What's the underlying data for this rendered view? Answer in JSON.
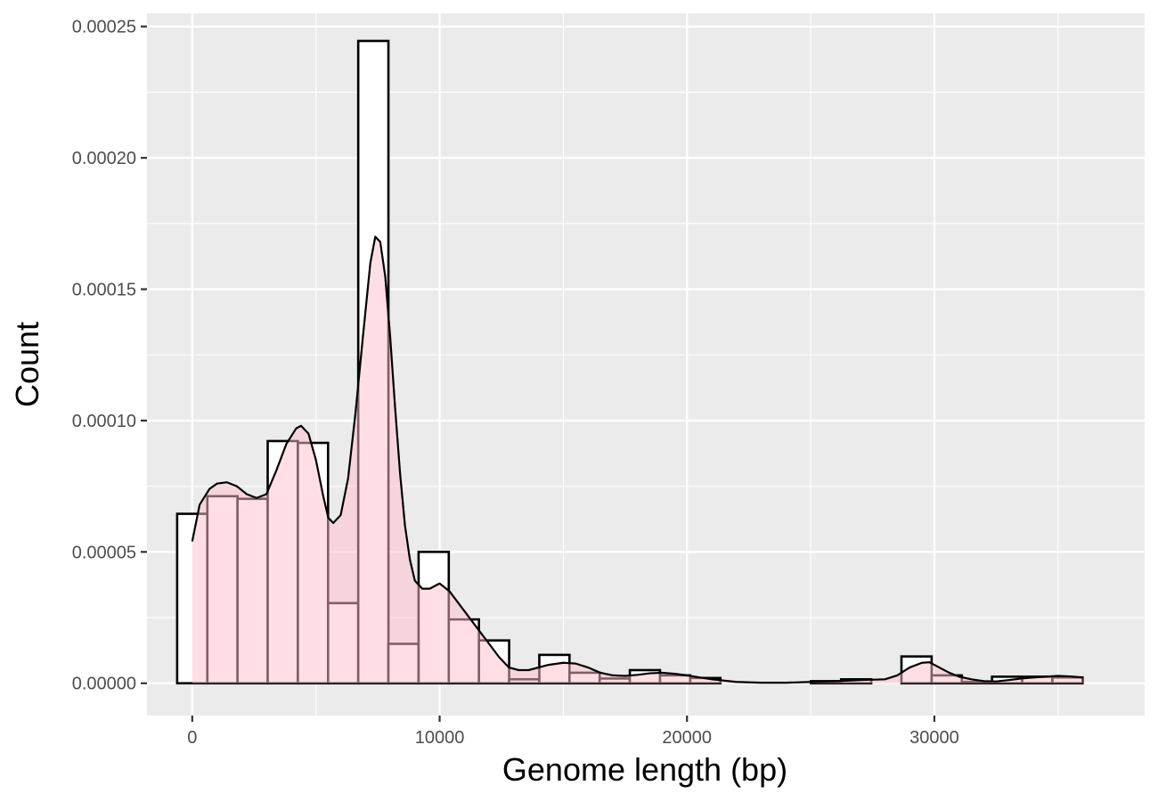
{
  "chart_data": {
    "type": "bar",
    "title": "",
    "xlabel": "Genome length (bp)",
    "ylabel": "Count",
    "xlim": [
      -1830,
      38500
    ],
    "ylim": [
      -1.23e-05,
      0.000255
    ],
    "x_ticks": [
      0,
      10000,
      20000,
      30000
    ],
    "x_tick_labels": [
      "0",
      "10000",
      "20000",
      "30000"
    ],
    "y_ticks": [
      0,
      5e-05,
      0.0001,
      0.00015,
      0.0002,
      0.00025
    ],
    "y_tick_labels": [
      "0.00000",
      "0.00005",
      "0.00010",
      "0.00015",
      "0.00020",
      "0.00025"
    ],
    "grid": true,
    "legend": "none",
    "colors": {
      "panel": "#ebebeb",
      "grid": "#ffffff",
      "bar_fill": "#ffffff",
      "bar_stroke": "#000000",
      "density_fill": "#ffc0cb",
      "density_line": "#000000"
    },
    "series": [
      {
        "kind": "histogram",
        "bins": [
          {
            "x0": -610,
            "x1": 610,
            "value": 6.45e-05
          },
          {
            "x0": 610,
            "x1": 1830,
            "value": 7.12e-05
          },
          {
            "x0": 1830,
            "x1": 3050,
            "value": 7.02e-05
          },
          {
            "x0": 3050,
            "x1": 4270,
            "value": 9.22e-05
          },
          {
            "x0": 4270,
            "x1": 5490,
            "value": 9.15e-05
          },
          {
            "x0": 5490,
            "x1": 6710,
            "value": 3.05e-05
          },
          {
            "x0": 6710,
            "x1": 7930,
            "value": 0.0002445
          },
          {
            "x0": 7930,
            "x1": 9150,
            "value": 1.5e-05
          },
          {
            "x0": 9150,
            "x1": 10370,
            "value": 5e-05
          },
          {
            "x0": 10370,
            "x1": 11590,
            "value": 2.43e-05
          },
          {
            "x0": 11590,
            "x1": 12810,
            "value": 1.63e-05
          },
          {
            "x0": 12810,
            "x1": 14030,
            "value": 1.5e-06
          },
          {
            "x0": 14030,
            "x1": 15250,
            "value": 1.08e-05
          },
          {
            "x0": 15250,
            "x1": 16470,
            "value": 4e-06
          },
          {
            "x0": 16470,
            "x1": 17690,
            "value": 1.8e-06
          },
          {
            "x0": 17690,
            "x1": 18910,
            "value": 5e-06
          },
          {
            "x0": 18910,
            "x1": 20130,
            "value": 3e-06
          },
          {
            "x0": 20130,
            "x1": 21350,
            "value": 2e-06
          },
          {
            "x0": 21350,
            "x1": 22570,
            "value": 0.0
          },
          {
            "x0": 22570,
            "x1": 23790,
            "value": 0.0
          },
          {
            "x0": 23790,
            "x1": 25010,
            "value": 0.0
          },
          {
            "x0": 25010,
            "x1": 26230,
            "value": 8e-07
          },
          {
            "x0": 26230,
            "x1": 27450,
            "value": 1.5e-06
          },
          {
            "x0": 27450,
            "x1": 28670,
            "value": 0.0
          },
          {
            "x0": 28670,
            "x1": 29890,
            "value": 1.02e-05
          },
          {
            "x0": 29890,
            "x1": 31110,
            "value": 3e-06
          },
          {
            "x0": 31110,
            "x1": 32330,
            "value": 5e-07
          },
          {
            "x0": 32330,
            "x1": 33550,
            "value": 2.5e-06
          },
          {
            "x0": 33550,
            "x1": 34770,
            "value": 2.5e-06
          },
          {
            "x0": 34770,
            "x1": 35990,
            "value": 2.2e-06
          }
        ]
      },
      {
        "kind": "density",
        "x": [
          0,
          300,
          700,
          1000,
          1400,
          1800,
          2200,
          2600,
          3000,
          3400,
          3800,
          4200,
          4400,
          4700,
          5000,
          5300,
          5500,
          5700,
          6000,
          6300,
          6600,
          6900,
          7200,
          7400,
          7600,
          7800,
          8000,
          8200,
          8400,
          8600,
          8800,
          9000,
          9300,
          9600,
          10000,
          10400,
          10800,
          11200,
          11600,
          12000,
          12400,
          12800,
          13200,
          13600,
          14000,
          14400,
          15000,
          15500,
          16000,
          16500,
          17000,
          17500,
          18000,
          18500,
          19000,
          19500,
          20000,
          21000,
          22000,
          23000,
          24000,
          25000,
          26000,
          27000,
          28000,
          28500,
          29000,
          29500,
          29800,
          30200,
          30600,
          31000,
          31500,
          32000,
          32500,
          33000,
          33500,
          34000,
          34500,
          35000,
          35500,
          36000
        ],
        "y": [
          5.4e-05,
          6.8e-05,
          7.4e-05,
          7.6e-05,
          7.65e-05,
          7.5e-05,
          7.2e-05,
          7.05e-05,
          7.2e-05,
          8.1e-05,
          9.1e-05,
          9.7e-05,
          9.8e-05,
          9.5e-05,
          8.5e-05,
          7.1e-05,
          6.3e-05,
          6.1e-05,
          6.4e-05,
          7.8e-05,
          0.000103,
          0.000132,
          0.00016,
          0.00017,
          0.000168,
          0.000155,
          0.000132,
          0.000105,
          8e-05,
          6e-05,
          4.7e-05,
          3.9e-05,
          3.6e-05,
          3.6e-05,
          3.8e-05,
          3.5e-05,
          3e-05,
          2.5e-05,
          2e-05,
          1.5e-05,
          1e-05,
          6e-06,
          5e-06,
          5e-06,
          6e-06,
          7e-06,
          7.8e-06,
          7.5e-06,
          6e-06,
          4e-06,
          3e-06,
          2.8e-06,
          3.2e-06,
          3.8e-06,
          4e-06,
          3.6e-06,
          3e-06,
          1.5e-06,
          5e-07,
          2e-07,
          2e-07,
          5e-07,
          8e-07,
          1.2e-06,
          1.5e-06,
          3e-06,
          6e-06,
          7.8e-06,
          8e-06,
          6e-06,
          4e-06,
          2.5e-06,
          1.5e-06,
          8e-07,
          7e-07,
          1.2e-06,
          1.8e-06,
          2.2e-06,
          2.5e-06,
          2.8e-06,
          2.6e-06,
          2.2e-06
        ]
      }
    ]
  }
}
